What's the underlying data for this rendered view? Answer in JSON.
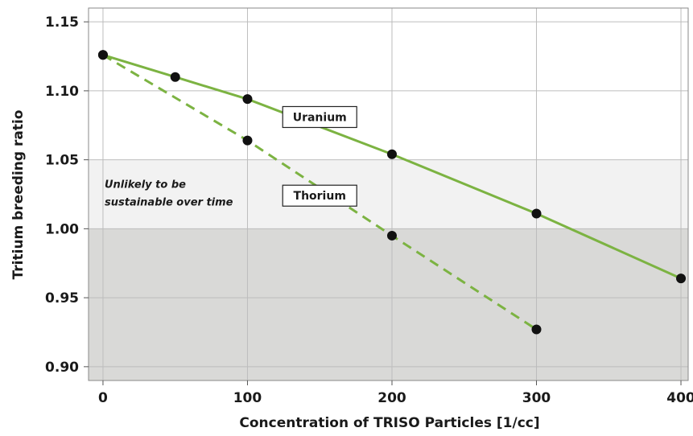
{
  "chart_data": {
    "type": "line",
    "title": "",
    "xlabel": "Concentration of TRISO Particles [1/cc]",
    "ylabel": "Tritium breeding ratio",
    "xlim": [
      -10,
      405
    ],
    "ylim": [
      0.89,
      1.16
    ],
    "x_ticks": [
      "0",
      "100",
      "200",
      "300",
      "400"
    ],
    "y_ticks": [
      "0.90",
      "0.95",
      "1.00",
      "1.05",
      "1.10",
      "1.15"
    ],
    "grid": true,
    "series": [
      {
        "name": "Uranium",
        "line_style": "solid",
        "color": "#7cb342",
        "x": [
          0,
          50,
          100,
          200,
          300,
          400
        ],
        "y": [
          1.126,
          1.11,
          1.094,
          1.054,
          1.011,
          0.964
        ]
      },
      {
        "name": "Thorium",
        "line_style": "dashed",
        "color": "#7cb342",
        "x": [
          0,
          100,
          200,
          300
        ],
        "y": [
          1.126,
          1.064,
          0.995,
          0.927
        ]
      }
    ],
    "regions": [
      {
        "y_from": 1.0,
        "y_to": 1.05,
        "color": "#f2f2f2",
        "label": [
          "Unlikely to be",
          "sustainable over time"
        ]
      },
      {
        "y_from": 0.89,
        "y_to": 1.0,
        "color": "#d9d9d7",
        "label": []
      }
    ],
    "marker_color": "#111111"
  }
}
